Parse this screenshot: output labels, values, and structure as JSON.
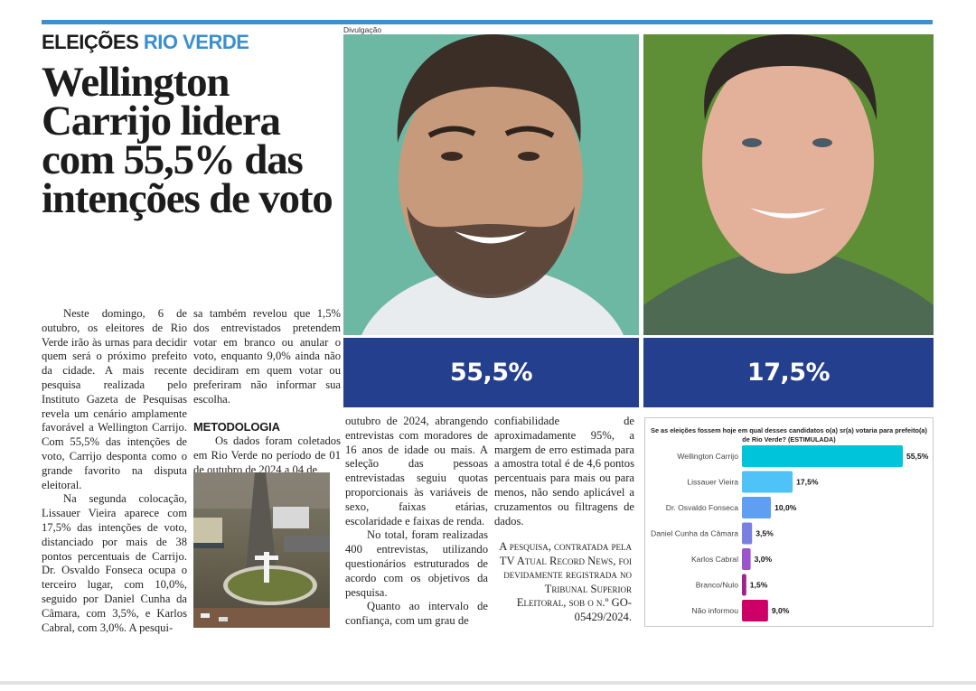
{
  "section": {
    "label": "ELEIÇÕES",
    "sublabel": "RIO VERDE"
  },
  "headline": "Wellington Carrijo lidera com 55,5% das intenções de voto",
  "photo_credit": "Divulgação",
  "candidates": [
    {
      "name": "Wellington Carrijo",
      "percent": "55,5%",
      "bg_color": "#6db8a3"
    },
    {
      "name": "Lissauer Vieira",
      "percent": "17,5%",
      "bg_color": "#5e8f36"
    }
  ],
  "article": {
    "paragraphs_col1": [
      "Neste domingo, 6 de outubro, os eleitores de Rio Verde irão às urnas para decidir quem será o próximo prefeito da cidade. A mais recente pesquisa realizada pelo Instituto Gazeta de Pesquisas revela um cenário amplamente favorável a Wellington Carrijo. Com 55,5% das intenções de voto, Carrijo desponta como o grande favorito na disputa eleitoral.",
      "Na segunda colocação, Lissauer Vieira aparece com 17,5% das intenções de voto, distanciado por mais de 38 pontos percentuais de Carrijo. Dr. Osvaldo Fonseca ocupa o terceiro lugar, com 10,0%, seguido por Daniel Cunha da Câmara, com 3,5%, e Karlos Cabral, com 3,0%. A pesqui-"
    ],
    "paragraph_col2_cont": "sa também revelou que 1,5% dos entrevistados pretendem votar em branco ou anular o voto, enquanto 9,0% ainda não decidiram em quem votar ou preferiram não informar sua escolha.",
    "methodology_title": "METODOLOGIA",
    "methodology_col2": "Os dados foram coletados em Rio Verde no período de 01 de outubro de 2024 a 04 de",
    "methodology_col3_cont": "outubro de 2024, abrangendo entrevistas com moradores de 16 anos de idade ou mais. A seleção das pessoas entrevistadas seguiu quotas proporcionais às variáveis de sexo, faixas etárias, escolaridade e faixas de renda.",
    "paragraphs_col3": [
      "No total, foram realizadas 400 entrevistas, utilizando questionários estruturados de acordo com os objetivos da pesquisa.",
      "Quanto ao intervalo de confiança, com um grau de"
    ],
    "col4_cont": "confiabilidade de aproximadamente 95%, a margem de erro estimada para a amostra total é de 4,6 pontos percentuais para mais ou para menos, não sendo aplicável a cruzamentos ou filtragens de dados.",
    "byline": "A pesquisa, contratada pela TV Atual Record News, foi devidamente registrada no Tribunal Superior Eleitoral, sob o n.º GO-05429/2024."
  },
  "chart_data": {
    "type": "bar",
    "orientation": "horizontal",
    "title": "Se as eleições fossem hoje em qual desses candidatos o(a) sr(a) votaria para prefeito(a) de Rio Verde? (ESTIMULADA)",
    "categories": [
      "Wellington Carrijo",
      "Lissauer Vieira",
      "Dr. Osvaldo Fonseca",
      "Daniel Cunha da Câmara",
      "Karlos Cabral",
      "Branco/Nulo",
      "Não informou"
    ],
    "values": [
      55.5,
      17.5,
      10.0,
      3.5,
      3.0,
      1.5,
      9.0
    ],
    "value_labels": [
      "55,5%",
      "17,5%",
      "10,0%",
      "3,5%",
      "3,0%",
      "1,5%",
      "9,0%"
    ],
    "colors": [
      "#00c4d9",
      "#4fc2f7",
      "#5e9ff2",
      "#7a7fe0",
      "#9a55cc",
      "#a0208f",
      "#cc0066"
    ],
    "xlim": [
      0,
      55.5
    ],
    "unit": "%",
    "grid": false,
    "legend": "none"
  }
}
